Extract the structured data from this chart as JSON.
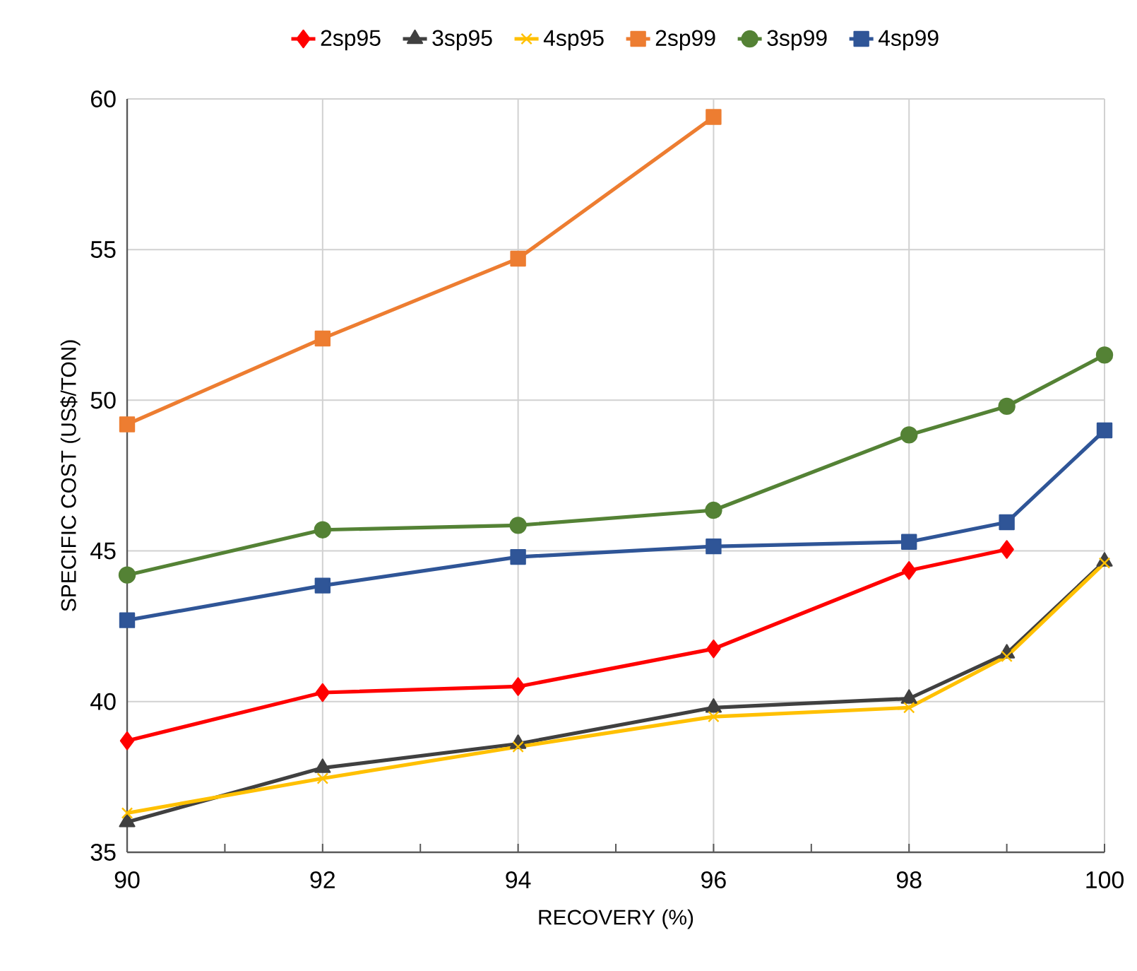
{
  "chart_data": {
    "type": "line",
    "xlabel": "RECOVERY (%)",
    "ylabel": "SPECIFIC COST (US$/TON)",
    "xlim": [
      90,
      100
    ],
    "xticks": [
      90,
      92,
      94,
      96,
      98,
      100
    ],
    "ylim": [
      35,
      60
    ],
    "yticks": [
      35,
      40,
      45,
      50,
      55,
      60
    ],
    "grid": true,
    "legend": "top",
    "line_style": "solid",
    "series": [
      {
        "name": "2sp95",
        "color": "#ff0000",
        "marker": "diamond",
        "x": [
          90,
          92,
          94,
          96,
          98,
          99
        ],
        "values": [
          38.7,
          40.3,
          40.5,
          41.75,
          44.35,
          45.05
        ]
      },
      {
        "name": "3sp95",
        "color": "#404040",
        "marker": "triangle",
        "x": [
          90,
          92,
          94,
          96,
          98,
          99,
          100
        ],
        "values": [
          36.0,
          37.8,
          38.6,
          39.8,
          40.1,
          41.6,
          44.65
        ]
      },
      {
        "name": "4sp95",
        "color": "#ffc000",
        "marker": "cross",
        "x": [
          90,
          92,
          94,
          96,
          98,
          99,
          100
        ],
        "values": [
          36.3,
          37.45,
          38.5,
          39.5,
          39.8,
          41.5,
          44.6
        ]
      },
      {
        "name": "2sp99",
        "color": "#ed7d31",
        "marker": "square",
        "x": [
          90,
          92,
          94,
          96
        ],
        "values": [
          49.2,
          52.05,
          54.7,
          59.4
        ]
      },
      {
        "name": "3sp99",
        "color": "#548235",
        "marker": "circle",
        "x": [
          90,
          92,
          94,
          96,
          98,
          99,
          100
        ],
        "values": [
          44.2,
          45.7,
          45.85,
          46.35,
          48.85,
          49.8,
          51.5
        ]
      },
      {
        "name": "4sp99",
        "color": "#2f5597",
        "marker": "square",
        "x": [
          90,
          92,
          94,
          96,
          98,
          99,
          100
        ],
        "values": [
          42.7,
          43.85,
          44.8,
          45.15,
          45.3,
          45.95,
          49.0
        ]
      }
    ]
  }
}
